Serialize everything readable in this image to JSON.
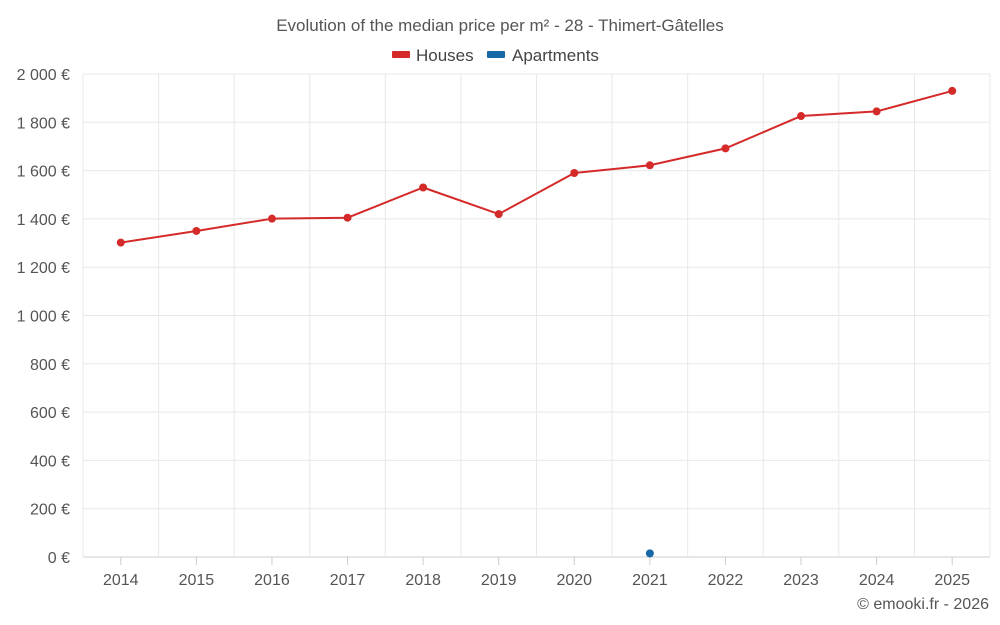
{
  "chart_data": {
    "type": "line",
    "title": "Evolution of the median price per m² - 28 - Thimert-Gâtelles",
    "categories": [
      "2014",
      "2015",
      "2016",
      "2017",
      "2018",
      "2019",
      "2020",
      "2021",
      "2022",
      "2023",
      "2024",
      "2025"
    ],
    "series": [
      {
        "name": "Houses",
        "color": "#d42a2a",
        "values": [
          1302,
          1350,
          1401,
          1405,
          1530,
          1420,
          1590,
          1622,
          1692,
          1826,
          1845,
          1930
        ]
      },
      {
        "name": "Apartments",
        "color": "#1769a8",
        "values": [
          null,
          null,
          null,
          null,
          null,
          null,
          null,
          15,
          null,
          null,
          null,
          null
        ]
      }
    ],
    "ylim": [
      0,
      2000
    ],
    "yticks": [
      0,
      200,
      400,
      600,
      800,
      1000,
      1200,
      1400,
      1600,
      1800,
      2000
    ],
    "ytick_labels": [
      "0 €",
      "200 €",
      "400 €",
      "600 €",
      "800 €",
      "1 000 €",
      "1 200 €",
      "1 400 €",
      "1 600 €",
      "1 800 €",
      "2 000 €"
    ],
    "xlabel": "",
    "ylabel": "",
    "grid": true,
    "legend_position": "top-center"
  },
  "credit": "© emooki.fr - 2026"
}
